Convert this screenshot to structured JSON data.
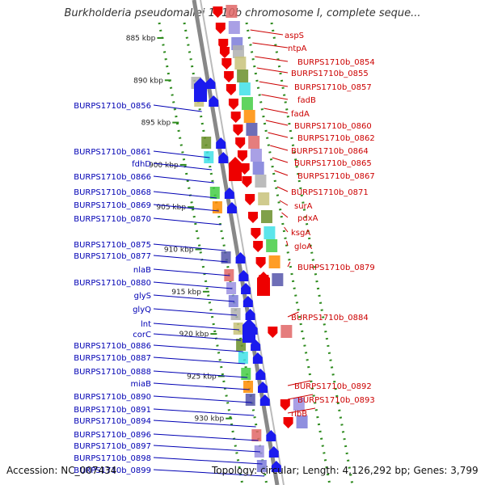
{
  "title": "Burkholderia pseudomallei 1710b chromosome I, complete seque...",
  "footer": {
    "accession": "Accession: NC_007434",
    "summary": "Topology: circular; Length: 4,126,292 bp; Genes: 3,799"
  },
  "colors": {
    "left_label": "#0000b4",
    "right_label": "#cc0000",
    "ruler": "#2e8b1e",
    "backbone": "#888888"
  },
  "ruler_ticks": [
    "885 kbp",
    "890 kbp",
    "895 kbp",
    "900 kbp",
    "905 kbp",
    "910 kbp",
    "915 kbp",
    "920 kbp",
    "925 kbp",
    "930 kbp"
  ],
  "left_genes": [
    "BURPS1710b_0856",
    "BURPS1710b_0861",
    "fdhD",
    "BURPS1710b_0866",
    "BURPS1710b_0868",
    "BURPS1710b_0869",
    "BURPS1710b_0870",
    "BURPS1710b_0875",
    "BURPS1710b_0877",
    "nlaB",
    "BURPS1710b_0880",
    "glyS",
    "glyQ",
    "lnt",
    "corC",
    "BURPS1710b_0886",
    "BURPS1710b_0887",
    "BURPS1710b_0888",
    "miaB",
    "BURPS1710b_0890",
    "BURPS1710b_0891",
    "BURPS1710b_0894",
    "BURPS1710b_0896",
    "BURPS1710b_0897",
    "BURPS1710b_0898",
    "BURPS1710b_0899"
  ],
  "right_genes": [
    "aspS",
    "ntpA",
    "BURPS1710b_0854",
    "BURPS1710b_0855",
    "BURPS1710b_0857",
    "fadB",
    "fadA",
    "BURPS1710b_0860",
    "BURPS1710b_0862",
    "BURPS1710b_0864",
    "BURPS1710b_0865",
    "BURPS1710b_0867",
    "BURPS1710b_0871",
    "surA",
    "pdxA",
    "ksgA",
    "gloA",
    "BURPS1710b_0879",
    "BURPS1710b_0884",
    "BURPS1710b_0892",
    "BURPS1710b_0893",
    "ribB"
  ]
}
